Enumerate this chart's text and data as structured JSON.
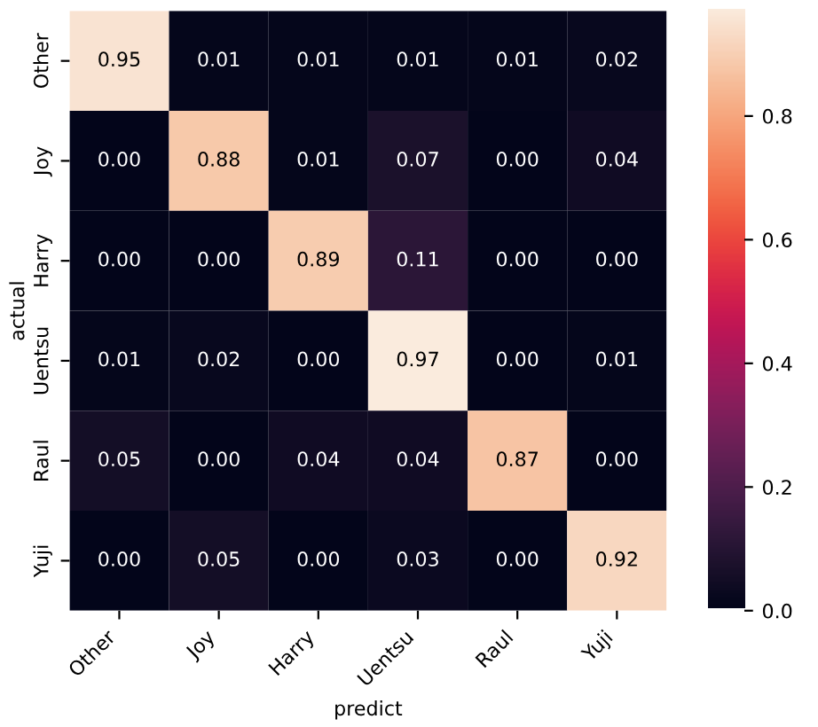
{
  "chart_data": {
    "type": "heatmap",
    "xlabel": "predict",
    "ylabel": "actual",
    "categories": [
      "Other",
      "Joy",
      "Harry",
      "Uentsu",
      "Raul",
      "Yuji"
    ],
    "y_categories": [
      "Other",
      "Joy",
      "Harry",
      "Uentsu",
      "Raul",
      "Yuji"
    ],
    "cells": [
      [
        0.95,
        0.01,
        0.01,
        0.01,
        0.01,
        0.02
      ],
      [
        0.0,
        0.88,
        0.01,
        0.07,
        0.0,
        0.04
      ],
      [
        0.0,
        0.0,
        0.89,
        0.11,
        0.0,
        0.0
      ],
      [
        0.01,
        0.02,
        0.0,
        0.97,
        0.0,
        0.01
      ],
      [
        0.05,
        0.0,
        0.04,
        0.04,
        0.87,
        0.0
      ],
      [
        0.0,
        0.05,
        0.0,
        0.03,
        0.0,
        0.92
      ]
    ],
    "cell_labels": [
      [
        "0.95",
        "0.01",
        "0.01",
        "0.01",
        "0.01",
        "0.02"
      ],
      [
        "0.00",
        "0.88",
        "0.01",
        "0.07",
        "0.00",
        "0.04"
      ],
      [
        "0.00",
        "0.00",
        "0.89",
        "0.11",
        "0.00",
        "0.00"
      ],
      [
        "0.01",
        "0.02",
        "0.00",
        "0.97",
        "0.00",
        "0.01"
      ],
      [
        "0.05",
        "0.00",
        "0.04",
        "0.04",
        "0.87",
        "0.00"
      ],
      [
        "0.00",
        "0.05",
        "0.00",
        "0.03",
        "0.00",
        "0.92"
      ]
    ],
    "clim": [
      0,
      0.97
    ],
    "cticks": [
      {
        "value": 0,
        "label": "0.0"
      },
      {
        "value": 0.2,
        "label": "0.2"
      },
      {
        "value": 0.4,
        "label": "0.4"
      },
      {
        "value": 0.6,
        "label": "0.6"
      },
      {
        "value": 0.8,
        "label": "0.8"
      }
    ]
  }
}
